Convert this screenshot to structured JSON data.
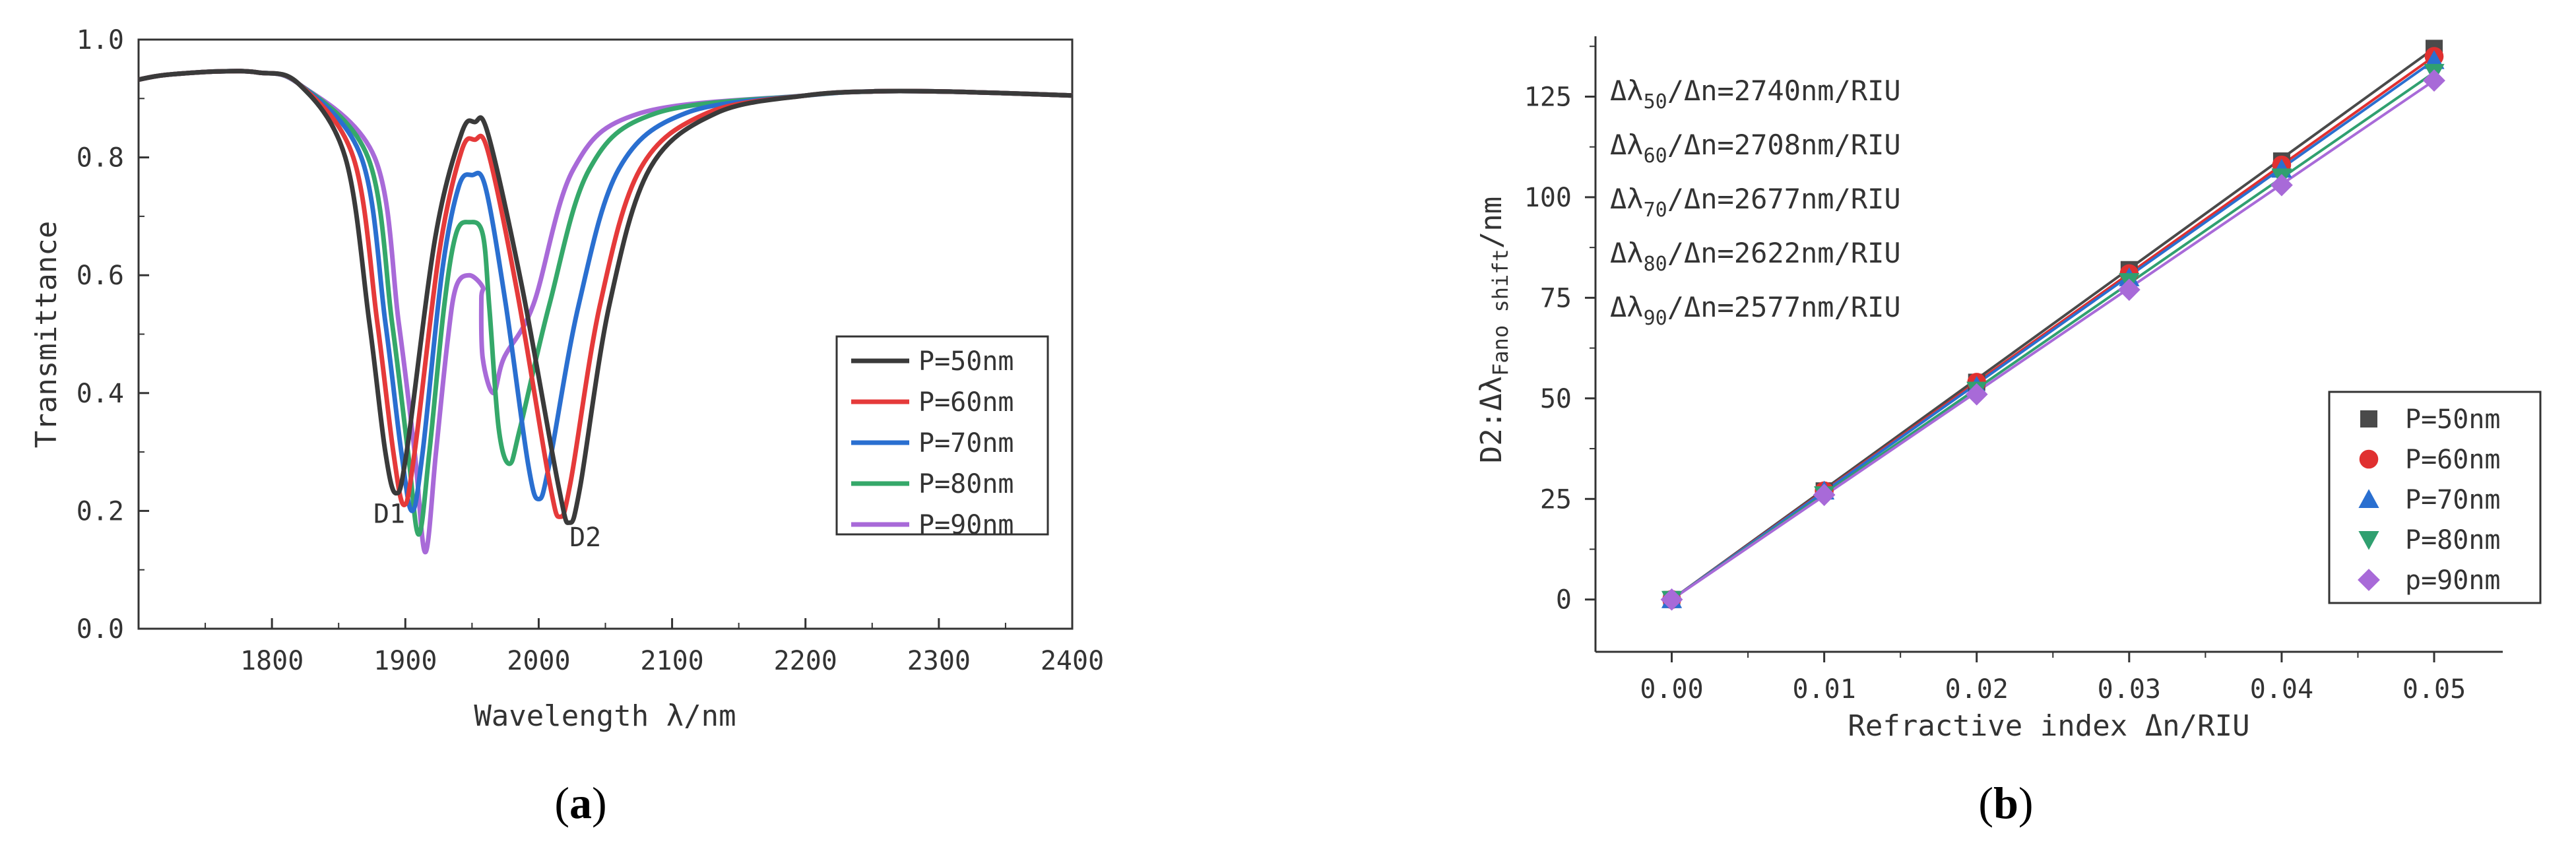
{
  "chart_data": [
    {
      "type": "line",
      "panel_label": "a",
      "xlabel": "Wavelength λ/nm",
      "ylabel": "Transmittance",
      "xlim": [
        1700,
        2400
      ],
      "ylim": [
        0.0,
        1.0
      ],
      "xticks": [
        "1800",
        "1900",
        "2000",
        "2100",
        "2200",
        "2300",
        "2400"
      ],
      "yticks": [
        "0.0",
        "0.2",
        "0.4",
        "0.6",
        "0.8",
        "1.0"
      ],
      "legend_position": "right",
      "annotations": [
        {
          "text": "D1",
          "x": 1888,
          "y": 0.18
        },
        {
          "text": "D2",
          "x": 2035,
          "y": 0.14
        }
      ],
      "series": [
        {
          "name": "P=50nm",
          "color": "#3a3a3a",
          "dip1": [
            1893,
            0.23
          ],
          "peak": [
            1952,
            0.86
          ],
          "dip2": [
            2023,
            0.18
          ]
        },
        {
          "name": "P=60nm",
          "color": "#e53a3a",
          "dip1": [
            1899,
            0.21
          ],
          "peak": [
            1952,
            0.83
          ],
          "dip2": [
            2016,
            0.19
          ]
        },
        {
          "name": "P=70nm",
          "color": "#2a6fd0",
          "dip1": [
            1905,
            0.2
          ],
          "peak": [
            1950,
            0.77
          ],
          "dip2": [
            2000,
            0.22
          ]
        },
        {
          "name": "P=80nm",
          "color": "#35a86a",
          "dip1": [
            1910,
            0.16
          ],
          "peak": [
            1948,
            0.69
          ],
          "dip2": [
            1978,
            0.28
          ]
        },
        {
          "name": "P=90nm",
          "color": "#a86ad8",
          "dip1": [
            1915,
            0.13
          ],
          "peak": [
            1948,
            0.6
          ],
          "dip2": [
            1966,
            0.4
          ]
        }
      ]
    },
    {
      "type": "scatter",
      "panel_label": "b",
      "xlabel": "Refractive index Δn/RIU",
      "ylabel_main": "D2:Δλ",
      "ylabel_sub": "Fano shift",
      "ylabel_tail": "/nm",
      "xlim": [
        -0.005,
        0.0545
      ],
      "ylim": [
        -13,
        140
      ],
      "xticks": [
        0.0,
        0.01,
        0.02,
        0.03,
        0.04,
        0.05
      ],
      "xtick_labels": [
        "0.00",
        "0.01",
        "0.02",
        "0.03",
        "0.04",
        "0.05"
      ],
      "yticks": [
        0,
        25,
        50,
        75,
        100,
        125
      ],
      "ytick_labels": [
        "0",
        "25",
        "50",
        "75",
        "100",
        "125"
      ],
      "legend_position": "bottom-right",
      "sensitivity_labels": [
        {
          "prefix": "Δλ",
          "sub": "50",
          "suffix": "/Δn=2740nm/RIU"
        },
        {
          "prefix": "Δλ",
          "sub": "60",
          "suffix": "/Δn=2708nm/RIU"
        },
        {
          "prefix": "Δλ",
          "sub": "70",
          "suffix": "/Δn=2677nm/RIU"
        },
        {
          "prefix": "Δλ",
          "sub": "80",
          "suffix": "/Δn=2622nm/RIU"
        },
        {
          "prefix": "Δλ",
          "sub": "90",
          "suffix": "/Δn=2577nm/RIU"
        }
      ],
      "x": [
        0.0,
        0.01,
        0.02,
        0.03,
        0.04,
        0.05
      ],
      "series": [
        {
          "name": "P=50nm",
          "marker": "square",
          "color": "#4a4a4a",
          "values": [
            0,
            27,
            54,
            82,
            109,
            137
          ]
        },
        {
          "name": "P=60nm",
          "marker": "circle",
          "color": "#e03030",
          "values": [
            0,
            27,
            54,
            81,
            108,
            135
          ]
        },
        {
          "name": "P=70nm",
          "marker": "triangle-up",
          "color": "#2a6fd0",
          "values": [
            0,
            27,
            53,
            80,
            107,
            134
          ]
        },
        {
          "name": "P=80nm",
          "marker": "triangle-down",
          "color": "#30a070",
          "values": [
            0,
            26,
            52,
            79,
            105,
            131
          ]
        },
        {
          "name": "p=90nm",
          "marker": "diamond",
          "color": "#a86ad8",
          "values": [
            0,
            26,
            51,
            77,
            103,
            129
          ]
        }
      ]
    }
  ]
}
